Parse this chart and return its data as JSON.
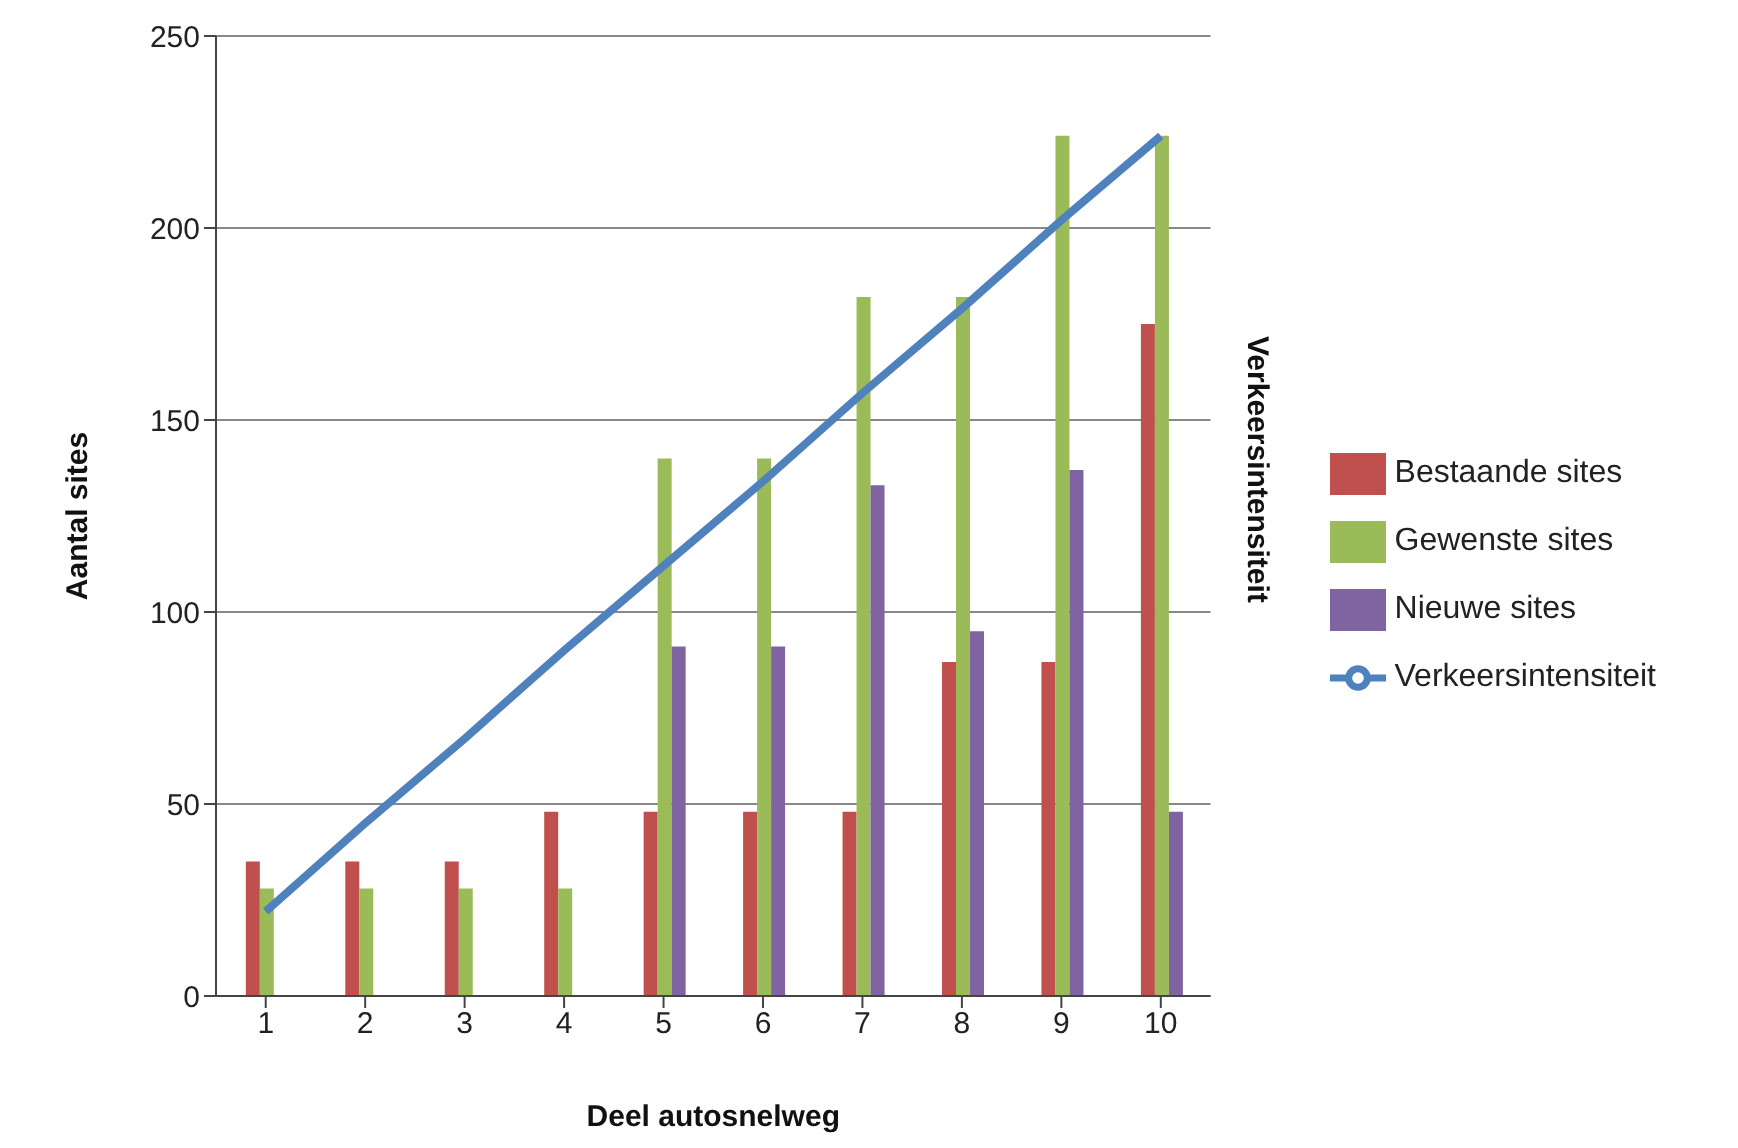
{
  "chart_data": {
    "type": "bar",
    "xlabel": "Deel autosnelweg",
    "ylabel": "Aantal sites",
    "y2label": "Verkeersintensiteit",
    "categories": [
      "1",
      "2",
      "3",
      "4",
      "5",
      "6",
      "7",
      "8",
      "9",
      "10"
    ],
    "series": [
      {
        "name": "Bestaande sites",
        "color": "#c0504d",
        "values": [
          35,
          35,
          35,
          48,
          48,
          48,
          48,
          87,
          87,
          175
        ]
      },
      {
        "name": "Gewenste sites",
        "color": "#9bbb59",
        "values": [
          28,
          28,
          28,
          28,
          140,
          140,
          182,
          182,
          224,
          224
        ]
      },
      {
        "name": "Nieuwe sites",
        "color": "#8064a2",
        "values": [
          null,
          null,
          null,
          null,
          91,
          91,
          133,
          95,
          137,
          48
        ]
      },
      {
        "name": "Verkeersintensiteit",
        "type": "line",
        "color": "#4f81bd",
        "values": [
          22,
          45,
          67,
          90,
          112,
          134,
          157,
          179,
          202,
          224
        ]
      }
    ],
    "ylim": [
      0,
      250
    ],
    "yticks": [
      0,
      50,
      100,
      150,
      200,
      250
    ],
    "grid": "y",
    "legend": "right",
    "marker": "none",
    "line_style": "solid"
  }
}
